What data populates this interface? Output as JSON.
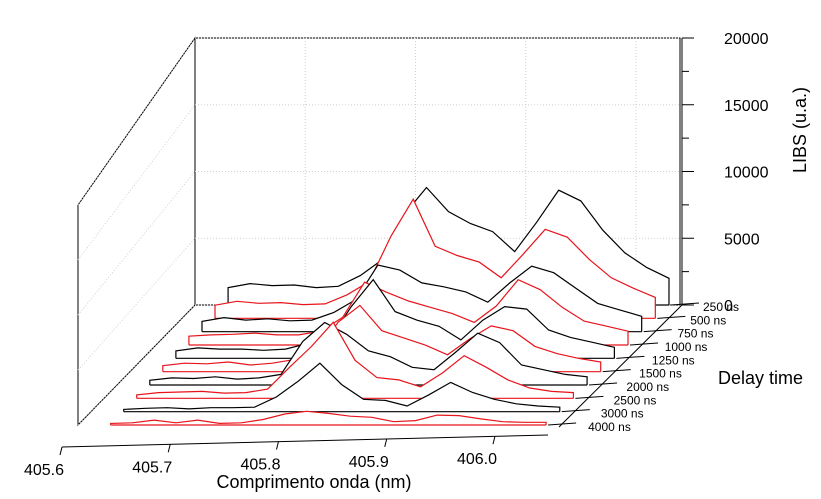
{
  "chart_data": {
    "type": "line",
    "subtype": "3d-waterfall",
    "title": "",
    "xlabel": "Comprimento onda (nm)",
    "zlabel": "LIBS (u.a.)",
    "ylabel": "Delay time",
    "x_ticks": [
      "405.6",
      "405.7",
      "405.8",
      "405.9",
      "406.0"
    ],
    "z_ticks": [
      "0",
      "5000",
      "10000",
      "15000",
      "20000"
    ],
    "xlim": [
      405.6,
      406.04
    ],
    "zlim": [
      0,
      20000
    ],
    "grid": true,
    "line_colors": [
      "#e8141c",
      "#000000"
    ],
    "x": [
      405.63,
      405.65,
      405.67,
      405.69,
      405.71,
      405.73,
      405.75,
      405.77,
      405.79,
      405.81,
      405.83,
      405.85,
      405.87,
      405.89,
      405.91,
      405.93,
      405.95,
      405.97,
      405.99,
      406.01,
      406.03
    ],
    "series": [
      {
        "name": "4000 ns",
        "values": [
          150,
          200,
          450,
          200,
          450,
          150,
          200,
          500,
          1000,
          1250,
          1050,
          800,
          700,
          300,
          400,
          900,
          850,
          550,
          300,
          250,
          250
        ]
      },
      {
        "name": "3000 ns",
        "values": [
          200,
          300,
          350,
          250,
          350,
          350,
          400,
          1300,
          2700,
          4300,
          2400,
          1100,
          1000,
          500,
          1500,
          2600,
          1700,
          1100,
          700,
          500,
          400
        ]
      },
      {
        "name": "2500 ns",
        "values": [
          300,
          500,
          550,
          600,
          450,
          500,
          800,
          2700,
          4500,
          6600,
          3300,
          1800,
          1600,
          1000,
          2200,
          3700,
          2700,
          1600,
          900,
          600,
          500
        ]
      },
      {
        "name": "2000 ns",
        "values": [
          400,
          600,
          550,
          700,
          500,
          600,
          900,
          3700,
          5300,
          4300,
          2900,
          2400,
          1500,
          1300,
          2800,
          4400,
          3600,
          1700,
          1300,
          900,
          700
        ]
      },
      {
        "name": "1500 ns",
        "values": [
          500,
          700,
          650,
          800,
          550,
          700,
          1000,
          1500,
          4100,
          5500,
          3400,
          2800,
          2200,
          1400,
          2700,
          3800,
          3400,
          2100,
          1500,
          1100,
          800
        ]
      },
      {
        "name": "1250 ns",
        "values": [
          600,
          850,
          750,
          750,
          650,
          750,
          1200,
          1500,
          4200,
          6400,
          3800,
          3100,
          2600,
          1500,
          3100,
          4200,
          4000,
          2300,
          1700,
          1300,
          900
        ]
      },
      {
        "name": "1000 ns",
        "values": [
          700,
          800,
          850,
          950,
          800,
          800,
          1100,
          2200,
          5000,
          4200,
          3500,
          3000,
          2500,
          1800,
          3100,
          5200,
          4400,
          3000,
          1900,
          1500,
          1100
        ]
      },
      {
        "name": "750 ns",
        "values": [
          800,
          1100,
          900,
          1000,
          850,
          900,
          1500,
          2500,
          5200,
          4800,
          3800,
          3500,
          3100,
          2300,
          3800,
          5100,
          4600,
          3400,
          2200,
          1700,
          1200
        ]
      },
      {
        "name": "500 ns",
        "values": [
          1000,
          1300,
          1150,
          1200,
          1050,
          1100,
          1800,
          2800,
          6300,
          9100,
          5500,
          4800,
          4300,
          3100,
          4900,
          6800,
          6200,
          4500,
          3100,
          2300,
          1600
        ]
      },
      {
        "name": "250 ns",
        "values": [
          1300,
          1600,
          1450,
          1500,
          1300,
          1400,
          2200,
          3400,
          6800,
          8800,
          7000,
          6100,
          5500,
          4000,
          6200,
          8600,
          7800,
          5600,
          3900,
          2800,
          2000
        ]
      }
    ],
    "series_order_front_to_back": [
      "4000 ns",
      "3000 ns",
      "2500 ns",
      "2000 ns",
      "1500 ns",
      "1250 ns",
      "1000 ns",
      "750 ns",
      "500 ns",
      "250 ns"
    ]
  }
}
